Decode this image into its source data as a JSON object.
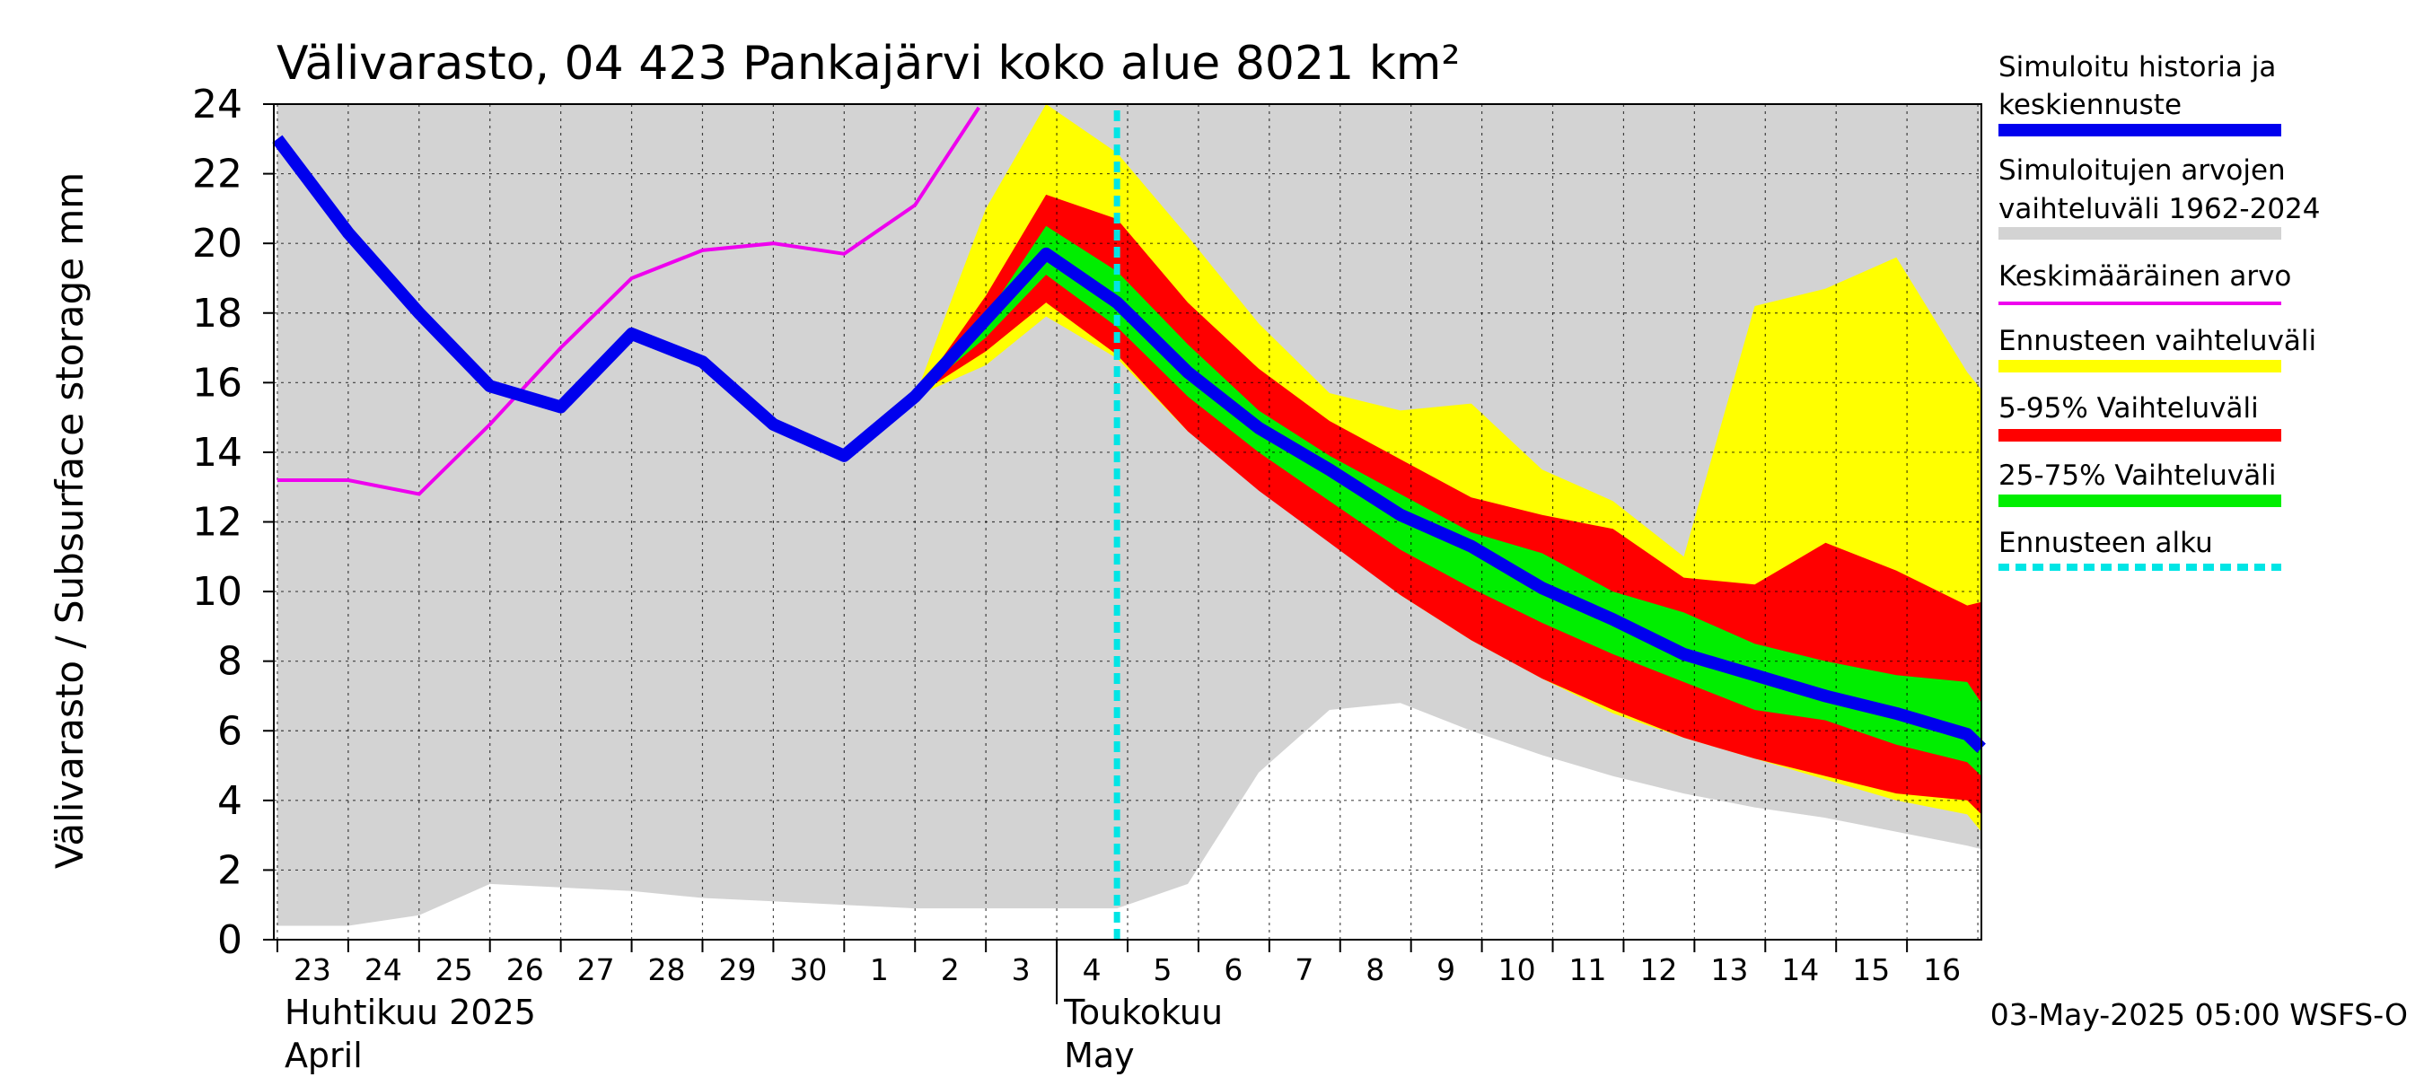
{
  "chart_data": {
    "type": "area",
    "title": "Välivarasto, 04 423 Pankajärvi koko alue 8021 km²",
    "ylabel": "Välivarasto / Subsurface storage  mm",
    "ylim": [
      0,
      24
    ],
    "yticks": [
      0,
      2,
      4,
      6,
      8,
      10,
      12,
      14,
      16,
      18,
      20,
      22,
      24
    ],
    "grid": true,
    "x_range_days": [
      -10.05,
      14.05
    ],
    "day_labels": [
      "23",
      "24",
      "25",
      "26",
      "27",
      "28",
      "29",
      "30",
      "1",
      "2",
      "3",
      "4",
      "5",
      "6",
      "7",
      "8",
      "9",
      "10",
      "11",
      "12",
      "13",
      "14",
      "15",
      "16"
    ],
    "month_labels": [
      {
        "line1": "Huhtikuu  2025",
        "line2": "April",
        "day": -10
      },
      {
        "line1": "Toukokuu",
        "line2": "May",
        "day": 1
      }
    ],
    "timestamp": "03-May-2025 05:00 WSFS-O",
    "forecast_start_day": 1.85,
    "series": [
      {
        "name": "Simuloitu historia ja keskiennuste",
        "color": "#0000ee",
        "x": [
          -10,
          -9,
          -8,
          -7,
          -6,
          -5,
          -4,
          -3,
          -2,
          -1,
          0.85,
          1.85,
          2.85,
          3.85,
          4.85,
          5.85,
          6.85,
          7.85,
          8.85,
          9.85,
          10.85,
          11.85,
          12.85,
          13.85,
          14.05
        ],
        "y": [
          23,
          20.3,
          18,
          15.9,
          15.3,
          17.4,
          16.6,
          14.8,
          13.9,
          15.6,
          19.7,
          18.3,
          16.3,
          14.7,
          13.5,
          12.2,
          11.3,
          10.1,
          9.2,
          8.2,
          7.6,
          7.0,
          6.5,
          5.9,
          5.5
        ]
      },
      {
        "name": "Keskimääräinen arvo",
        "color": "#ee00ee",
        "x": [
          -10,
          -9,
          -8,
          -7,
          -6,
          -5,
          -4,
          -3,
          -2,
          -1,
          -0.1
        ],
        "y": [
          13.2,
          13.2,
          12.8,
          14.8,
          17,
          19,
          19.8,
          20,
          19.7,
          21.1,
          23.9
        ]
      },
      {
        "name": "Simuloitujen arvojen vaihteluväli 1962-2024",
        "color": "#d3d3d3",
        "x": [
          -10,
          -9,
          -8,
          -7,
          -6,
          -5,
          -4,
          -3,
          -2,
          -1,
          0,
          0.85,
          1.85,
          2.85,
          3.85,
          4.85,
          5.85,
          6.85,
          7.85,
          8.85,
          9.85,
          10.85,
          11.85,
          12.85,
          13.85,
          14.05
        ],
        "lower": [
          0.4,
          0.4,
          0.7,
          1.6,
          1.5,
          1.4,
          1.2,
          1.1,
          1,
          0.9,
          0.9,
          0.9,
          0.9,
          1.6,
          4.8,
          6.6,
          6.8,
          6,
          5.3,
          4.7,
          4.2,
          3.8,
          3.5,
          3.1,
          2.7,
          2.6
        ],
        "upper": [
          24,
          24,
          24,
          24,
          24,
          24,
          24,
          24,
          24,
          24,
          24,
          24,
          24,
          24,
          24,
          24,
          24,
          24,
          24,
          24,
          24,
          24,
          24,
          24,
          24,
          24
        ]
      },
      {
        "name": "Ennusteen vaihteluväli",
        "color": "#ffff00",
        "x": [
          -1,
          0,
          0.85,
          1.85,
          2.85,
          3.85,
          4.85,
          5.85,
          6.85,
          7.85,
          8.85,
          9.85,
          10.85,
          11.85,
          12.85,
          13.85,
          14.05
        ],
        "lower": [
          15.6,
          16.5,
          17.9,
          16.7,
          14.6,
          13,
          11.5,
          9.9,
          8.6,
          7.5,
          6.5,
          5.8,
          5.2,
          4.6,
          4,
          3.6,
          3.1
        ],
        "upper": [
          15.6,
          21,
          24,
          22.6,
          20.2,
          17.7,
          15.7,
          15.2,
          15.4,
          13.5,
          12.6,
          11,
          18.2,
          18.7,
          19.6,
          16.3,
          15.8
        ]
      },
      {
        "name": "5-95% Vaihteluväli",
        "color": "#ff0000",
        "x": [
          -1,
          0,
          0.85,
          1.85,
          2.85,
          3.85,
          4.85,
          5.85,
          6.85,
          7.85,
          8.85,
          9.85,
          10.85,
          11.85,
          12.85,
          13.85,
          14.05
        ],
        "lower": [
          15.6,
          16.9,
          18.3,
          16.8,
          14.6,
          12.9,
          11.4,
          9.9,
          8.6,
          7.5,
          6.6,
          5.8,
          5.2,
          4.7,
          4.2,
          4,
          3.6
        ],
        "upper": [
          15.6,
          18.5,
          21.4,
          20.7,
          18.3,
          16.4,
          14.9,
          13.8,
          12.7,
          12.2,
          11.8,
          10.4,
          10.2,
          11.4,
          10.6,
          9.6,
          9.7
        ]
      },
      {
        "name": "25-75% Vaihteluväli",
        "color": "#00ee00",
        "x": [
          -1,
          0,
          0.85,
          1.85,
          2.85,
          3.85,
          4.85,
          5.85,
          6.85,
          7.85,
          8.85,
          9.85,
          10.85,
          11.85,
          12.85,
          13.85,
          14.05
        ],
        "lower": [
          15.6,
          17.3,
          19.1,
          17.6,
          15.6,
          14,
          12.6,
          11.2,
          10.1,
          9.1,
          8.2,
          7.4,
          6.6,
          6.3,
          5.6,
          5.1,
          4.7
        ],
        "upper": [
          15.6,
          17.9,
          20.5,
          19.2,
          17.1,
          15.2,
          13.9,
          12.8,
          11.7,
          11.1,
          10,
          9.4,
          8.5,
          8,
          7.6,
          7.4,
          6.8
        ]
      },
      {
        "name": "Ennusteen alku",
        "color": "#00e5e5",
        "x": [
          1.85,
          1.85
        ],
        "y": [
          0,
          24
        ]
      }
    ],
    "legend": [
      {
        "line1": "Simuloitu historia ja",
        "line2": "keskiennuste",
        "color": "#0000ee",
        "style": "thick"
      },
      {
        "line1": "Simuloitujen arvojen",
        "line2": "vaihteluväli 1962-2024",
        "color": "#d3d3d3",
        "style": "thick"
      },
      {
        "line1": "Keskimääräinen arvo",
        "line2": "",
        "color": "#ee00ee",
        "style": "thin"
      },
      {
        "line1": "Ennusteen vaihteluväli",
        "line2": "",
        "color": "#ffff00",
        "style": "thick"
      },
      {
        "line1": "5-95% Vaihteluväli",
        "line2": "",
        "color": "#ff0000",
        "style": "thick"
      },
      {
        "line1": "25-75% Vaihteluväli",
        "line2": "",
        "color": "#00ee00",
        "style": "thick"
      },
      {
        "line1": "Ennusteen alku",
        "line2": "",
        "color": "#00e5e5",
        "style": "dashed"
      }
    ]
  }
}
